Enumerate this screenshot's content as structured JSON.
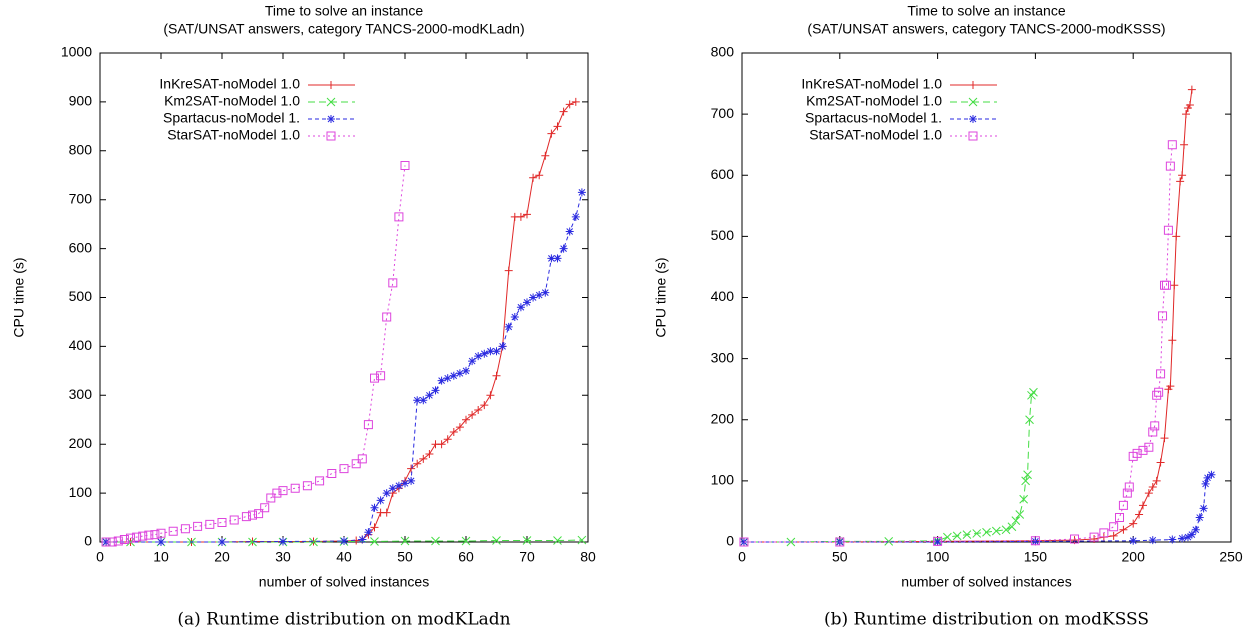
{
  "chart_data": [
    {
      "type": "line",
      "title": "Time to solve an instance",
      "subtitle": "(SAT/UNSAT answers, category TANCS-2000-modKLadn)",
      "x_label": "number of solved instances",
      "y_label": "CPU time (s)",
      "caption": "(a) Runtime distribution on modKLadn",
      "xlim": [
        0,
        80
      ],
      "xticks": [
        0,
        10,
        20,
        30,
        40,
        50,
        60,
        70,
        80
      ],
      "ylim": [
        0,
        1000
      ],
      "yticks": [
        0,
        100,
        200,
        300,
        400,
        500,
        600,
        700,
        800,
        900,
        1000
      ],
      "legend": "upper-left",
      "series": [
        {
          "name": "InKreSAT-noModel 1.0",
          "color": "#e02828",
          "x": [
            1,
            5,
            10,
            15,
            20,
            25,
            30,
            35,
            40,
            42,
            43,
            44,
            45,
            46,
            47,
            48,
            49,
            50,
            51,
            52,
            53,
            54,
            55,
            56,
            57,
            58,
            59,
            60,
            61,
            62,
            63,
            64,
            65,
            66,
            67,
            68,
            69,
            70,
            71,
            72,
            73,
            74,
            75,
            76,
            77,
            78
          ],
          "values": [
            0,
            0,
            0,
            0,
            0,
            1,
            1,
            1,
            2,
            3,
            5,
            15,
            30,
            60,
            60,
            100,
            110,
            125,
            150,
            160,
            170,
            180,
            200,
            200,
            210,
            225,
            235,
            250,
            260,
            270,
            280,
            300,
            340,
            400,
            555,
            665,
            665,
            670,
            745,
            750,
            790,
            835,
            850,
            880,
            895,
            900
          ]
        },
        {
          "name": "Km2SAT-noModel 1.0",
          "color": "#44dd44",
          "x": [
            1,
            5,
            10,
            15,
            20,
            25,
            30,
            35,
            40,
            45,
            50,
            55,
            60,
            65,
            70,
            75,
            79
          ],
          "values": [
            0,
            0,
            0,
            0,
            0,
            0,
            0,
            0,
            1,
            1,
            2,
            2,
            2,
            3,
            3,
            3,
            4
          ]
        },
        {
          "name": "Spartacus-noModel 1.",
          "color": "#2a2ae0",
          "x": [
            1,
            10,
            20,
            30,
            40,
            43,
            44,
            45,
            46,
            47,
            48,
            49,
            50,
            51,
            52,
            53,
            54,
            55,
            56,
            57,
            58,
            59,
            60,
            61,
            62,
            63,
            64,
            65,
            66,
            67,
            68,
            69,
            70,
            71,
            72,
            73,
            74,
            75,
            76,
            77,
            78,
            79
          ],
          "values": [
            0,
            0,
            0,
            1,
            2,
            5,
            20,
            70,
            85,
            100,
            110,
            115,
            120,
            125,
            290,
            290,
            300,
            310,
            330,
            335,
            340,
            345,
            350,
            370,
            380,
            385,
            390,
            390,
            400,
            440,
            460,
            480,
            490,
            500,
            505,
            510,
            580,
            580,
            600,
            635,
            665,
            715
          ]
        },
        {
          "name": "StarSAT-noModel 1.0",
          "color": "#dd44dd",
          "x": [
            1,
            2,
            3,
            4,
            5,
            6,
            7,
            8,
            9,
            10,
            12,
            14,
            16,
            18,
            20,
            22,
            24,
            25,
            26,
            27,
            28,
            29,
            30,
            32,
            34,
            36,
            38,
            40,
            42,
            43,
            44,
            45,
            46,
            47,
            48,
            49,
            50
          ],
          "values": [
            0,
            0,
            2,
            5,
            8,
            10,
            12,
            14,
            15,
            18,
            22,
            27,
            32,
            36,
            40,
            45,
            52,
            55,
            58,
            70,
            90,
            100,
            105,
            110,
            115,
            125,
            140,
            150,
            160,
            170,
            240,
            335,
            340,
            460,
            530,
            665,
            770
          ]
        }
      ]
    },
    {
      "type": "line",
      "title": "Time to solve an instance",
      "subtitle": "(SAT/UNSAT answers, category TANCS-2000-modKSSS)",
      "x_label": "number of solved instances",
      "y_label": "CPU time (s)",
      "caption": "(b) Runtime distribution on modKSSS",
      "xlim": [
        0,
        250
      ],
      "xticks": [
        0,
        50,
        100,
        150,
        200,
        250
      ],
      "ylim": [
        0,
        800
      ],
      "yticks": [
        0,
        100,
        200,
        300,
        400,
        500,
        600,
        700,
        800
      ],
      "legend": "upper-left",
      "series": [
        {
          "name": "InKreSAT-noModel 1.0",
          "color": "#e02828",
          "x": [
            1,
            50,
            100,
            150,
            170,
            180,
            185,
            190,
            195,
            200,
            203,
            205,
            208,
            210,
            212,
            214,
            216,
            218,
            219,
            220,
            221,
            222,
            224,
            225,
            226,
            227,
            228,
            229,
            230
          ],
          "values": [
            0,
            0,
            1,
            2,
            3,
            5,
            8,
            10,
            20,
            30,
            45,
            60,
            80,
            90,
            100,
            130,
            170,
            250,
            255,
            330,
            420,
            500,
            590,
            600,
            650,
            700,
            710,
            715,
            740
          ]
        },
        {
          "name": "Km2SAT-noModel 1.0",
          "color": "#44dd44",
          "x": [
            1,
            25,
            50,
            75,
            100,
            105,
            110,
            115,
            120,
            125,
            130,
            135,
            138,
            140,
            142,
            144,
            145,
            146,
            147,
            148,
            149
          ],
          "values": [
            0,
            0,
            1,
            1,
            2,
            8,
            10,
            12,
            14,
            16,
            18,
            20,
            25,
            35,
            45,
            70,
            100,
            110,
            200,
            240,
            245
          ]
        },
        {
          "name": "Spartacus-noModel 1.",
          "color": "#2a2ae0",
          "x": [
            1,
            50,
            100,
            150,
            200,
            210,
            220,
            225,
            228,
            230,
            232,
            234,
            236,
            237,
            238,
            240
          ],
          "values": [
            0,
            0,
            0,
            1,
            2,
            3,
            4,
            6,
            8,
            12,
            20,
            40,
            55,
            95,
            105,
            110
          ]
        },
        {
          "name": "StarSAT-noModel 1.0",
          "color": "#dd44dd",
          "x": [
            1,
            50,
            100,
            150,
            170,
            180,
            185,
            190,
            193,
            195,
            197,
            198,
            200,
            202,
            205,
            208,
            210,
            211,
            212,
            213,
            214,
            215,
            216,
            217,
            218,
            219,
            220
          ],
          "values": [
            0,
            0,
            1,
            2,
            5,
            8,
            15,
            25,
            40,
            60,
            80,
            90,
            140,
            145,
            150,
            155,
            180,
            190,
            240,
            245,
            275,
            370,
            420,
            420,
            510,
            615,
            650
          ]
        }
      ]
    }
  ]
}
